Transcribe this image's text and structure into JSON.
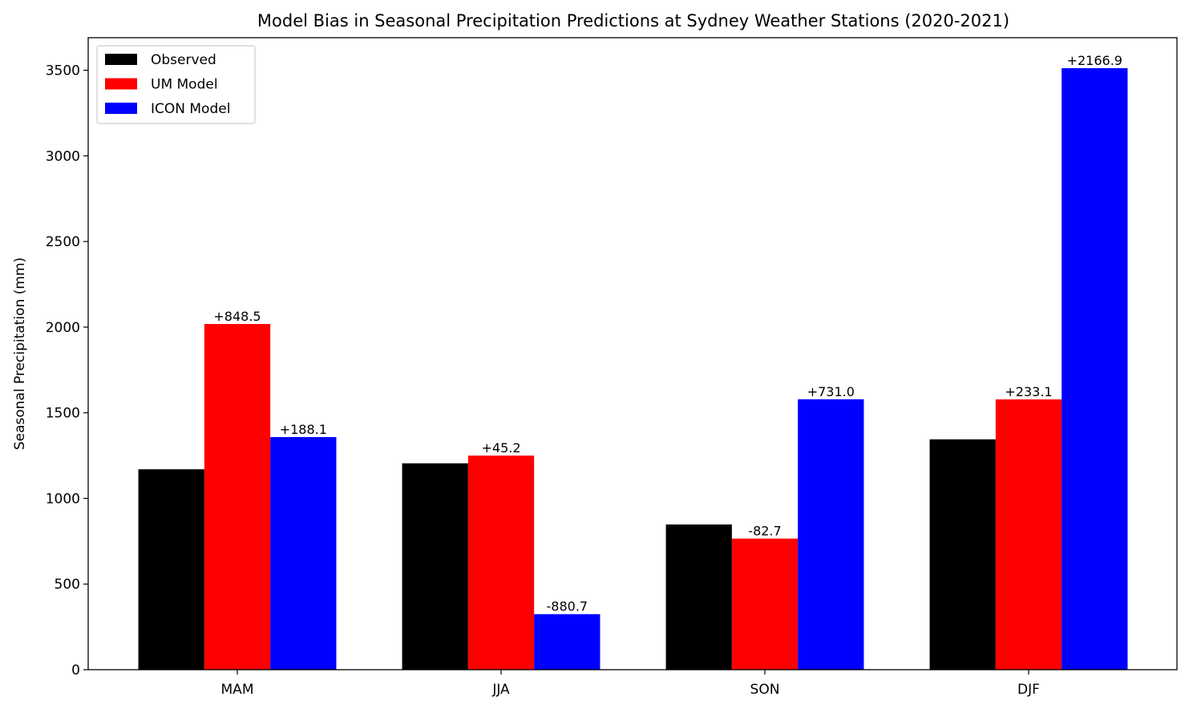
{
  "chart_data": {
    "type": "bar",
    "title": "Model Bias in Seasonal Precipitation Predictions at Sydney Weather Stations (2020-2021)",
    "xlabel": "",
    "ylabel": "Seasonal Precipitation (mm)",
    "categories": [
      "MAM",
      "JJA",
      "SON",
      "DJF"
    ],
    "ylim": [
      0,
      3690
    ],
    "yticks": [
      0,
      500,
      1000,
      1500,
      2000,
      2500,
      3000,
      3500
    ],
    "grid": false,
    "legend_position": "top-left",
    "series": [
      {
        "name": "Observed",
        "color": "#000000",
        "values": [
          1170,
          1205,
          848,
          1345
        ],
        "labels": [
          "",
          "",
          "",
          ""
        ]
      },
      {
        "name": "UM Model",
        "color": "#ff0000",
        "values": [
          2018.5,
          1250.2,
          765.3,
          1578.1
        ],
        "labels": [
          "+848.5",
          "+45.2",
          "-82.7",
          "+233.1"
        ]
      },
      {
        "name": "ICON Model",
        "color": "#0000ff",
        "values": [
          1358.1,
          324.3,
          1579.0,
          3511.9
        ],
        "labels": [
          "+188.1",
          "-880.7",
          "+731.0",
          "+2166.9"
        ]
      }
    ]
  }
}
